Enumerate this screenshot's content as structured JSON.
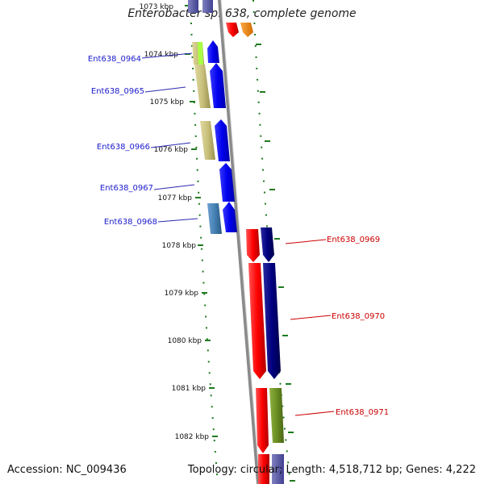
{
  "title": "Enterobacter sp. 638, complete genome",
  "accession_label": "Accession: NC_009436",
  "topology_label": "Topology: circular; Length: 4,518,712 bp; Genes: 4,222",
  "ticks": [
    "1073 kbp",
    "1074 kbp",
    "1075 kbp",
    "1076 kbp",
    "1077 kbp",
    "1078 kbp",
    "1079 kbp",
    "1080 kbp",
    "1081 kbp",
    "1082 kbp"
  ],
  "genes_minus_strand": [
    {
      "label": "Ent638_0964",
      "color": "#1a1acc"
    },
    {
      "label": "Ent638_0965",
      "color": "#1a1acc"
    },
    {
      "label": "Ent638_0966",
      "color": "#1a1acc"
    },
    {
      "label": "Ent638_0967",
      "color": "#1a1acc"
    },
    {
      "label": "Ent638_0968",
      "color": "#1a1acc"
    }
  ],
  "genes_plus_strand": [
    {
      "label": "Ent638_0969",
      "color": "#cc0000"
    },
    {
      "label": "Ent638_0970",
      "color": "#cc0000"
    },
    {
      "label": "Ent638_0971",
      "color": "#cc0000"
    }
  ],
  "colors": {
    "backbone": "#8a8a8a",
    "tick_green": "#1f7a1f",
    "gene_blue": "#0000ee",
    "gene_red": "#ff0000",
    "gene_navy": "#000080",
    "gene_khaki": "#c8c07a",
    "gene_olive": "#6b8e23",
    "gene_steel": "#4682b4",
    "gene_orange": "#ff8c00",
    "gene_lime": "#aaff44"
  }
}
